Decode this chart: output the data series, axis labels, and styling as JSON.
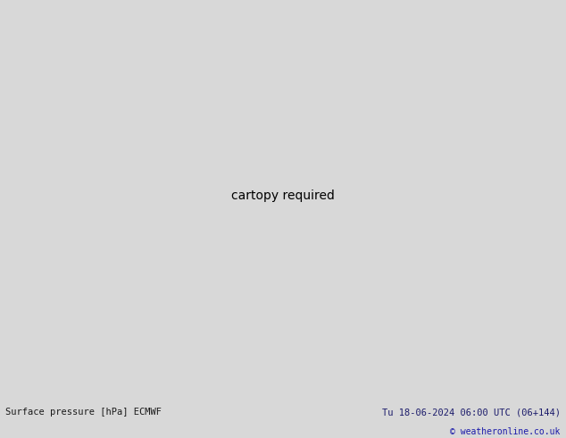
{
  "title_left": "Surface pressure [hPa] ECMWF",
  "title_right": "Tu 18-06-2024 06:00 UTC (06+144)",
  "copyright": "© weatheronline.co.uk",
  "bg_color": "#d8d8d8",
  "land_green": "#c8e8b0",
  "land_gray": "#a8a89a",
  "ocean_color": "#d8d8d8",
  "lake_color": "#c0d8e8",
  "text_color_left": "#1a1a1a",
  "text_color_right": "#1a1a6a",
  "copyright_color": "#1a1aaa",
  "figsize": [
    6.34,
    4.9
  ],
  "dpi": 100,
  "extent": [
    -170,
    -50,
    15,
    80
  ]
}
